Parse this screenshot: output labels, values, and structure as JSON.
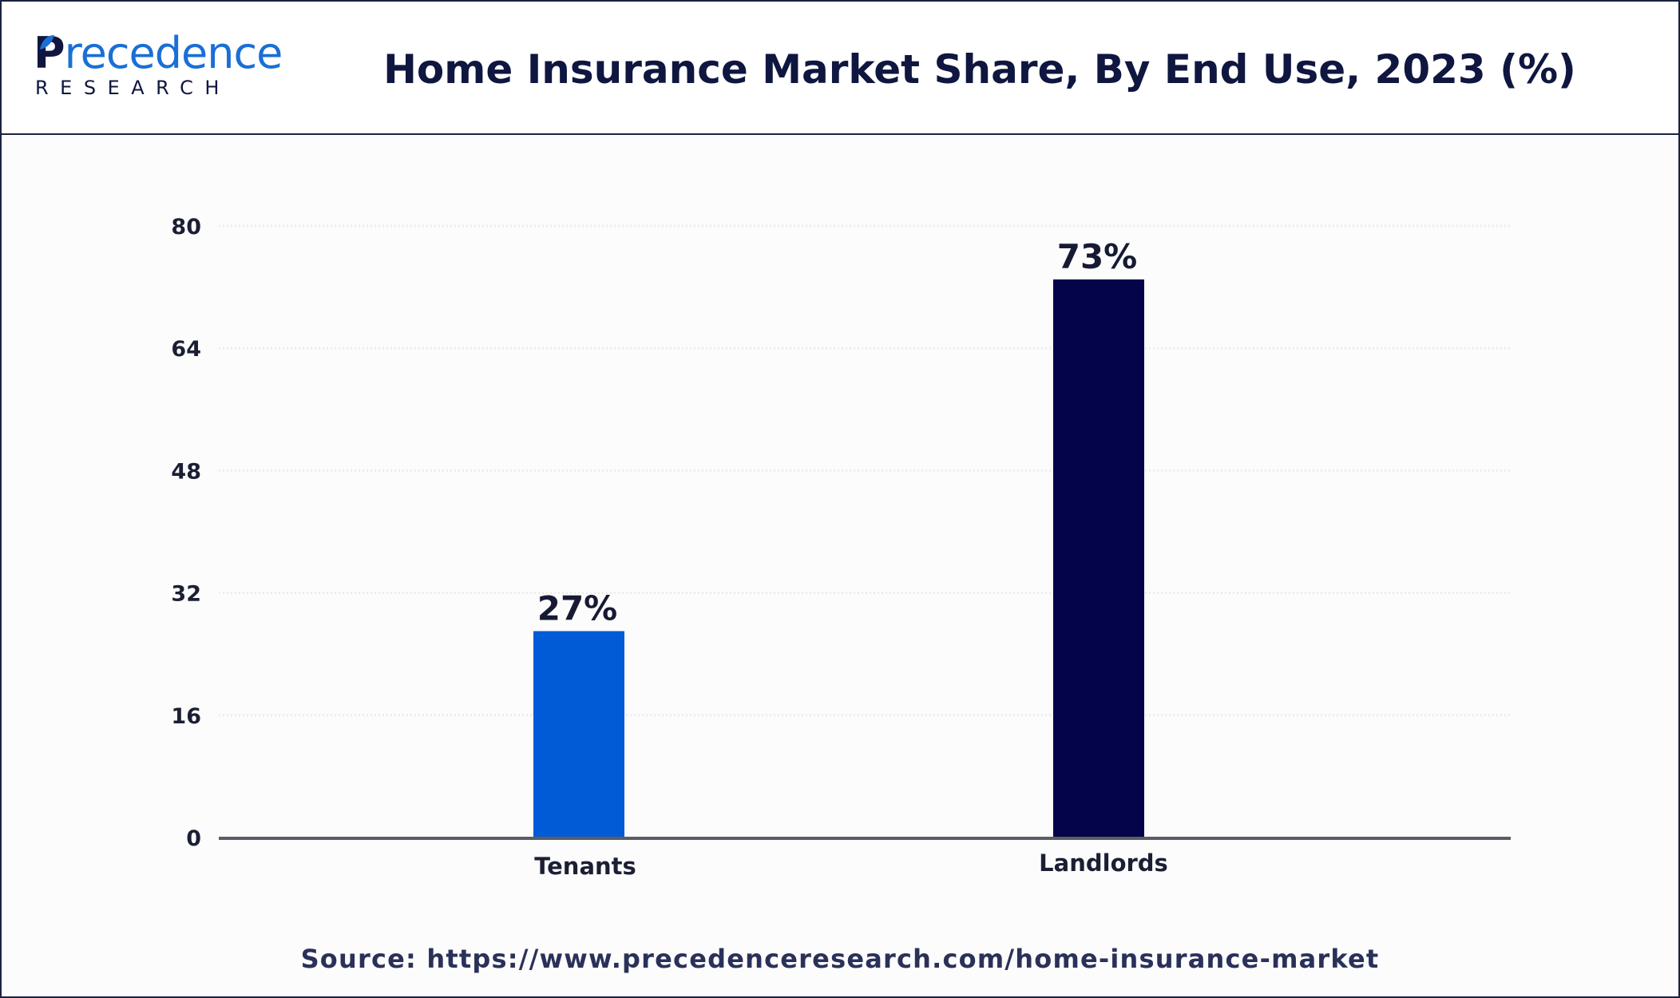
{
  "brand": {
    "logo_letter": "P",
    "logo_word": "recedence",
    "logo_sub": "RESEARCH",
    "primary_color": "#0f1640",
    "accent_color": "#1a6fd6"
  },
  "header": {
    "title": "Home Insurance Market Share, By End Use, 2023 (%)"
  },
  "chart_data": {
    "type": "bar",
    "title": "Home Insurance Market Share, By End Use, 2023 (%)",
    "categories": [
      "Tenants",
      "Landlords"
    ],
    "values": [
      27,
      73
    ],
    "data_labels": [
      "27%",
      "73%"
    ],
    "bar_colors": [
      "#015bd6",
      "#03044a"
    ],
    "ylim": [
      0,
      80
    ],
    "yticks": [
      0,
      16,
      32,
      48,
      64,
      80
    ],
    "xlabel": "",
    "ylabel": "",
    "grid": true,
    "legend": "none"
  },
  "footer": {
    "source": "Source: https://www.precedenceresearch.com/home-insurance-market"
  }
}
